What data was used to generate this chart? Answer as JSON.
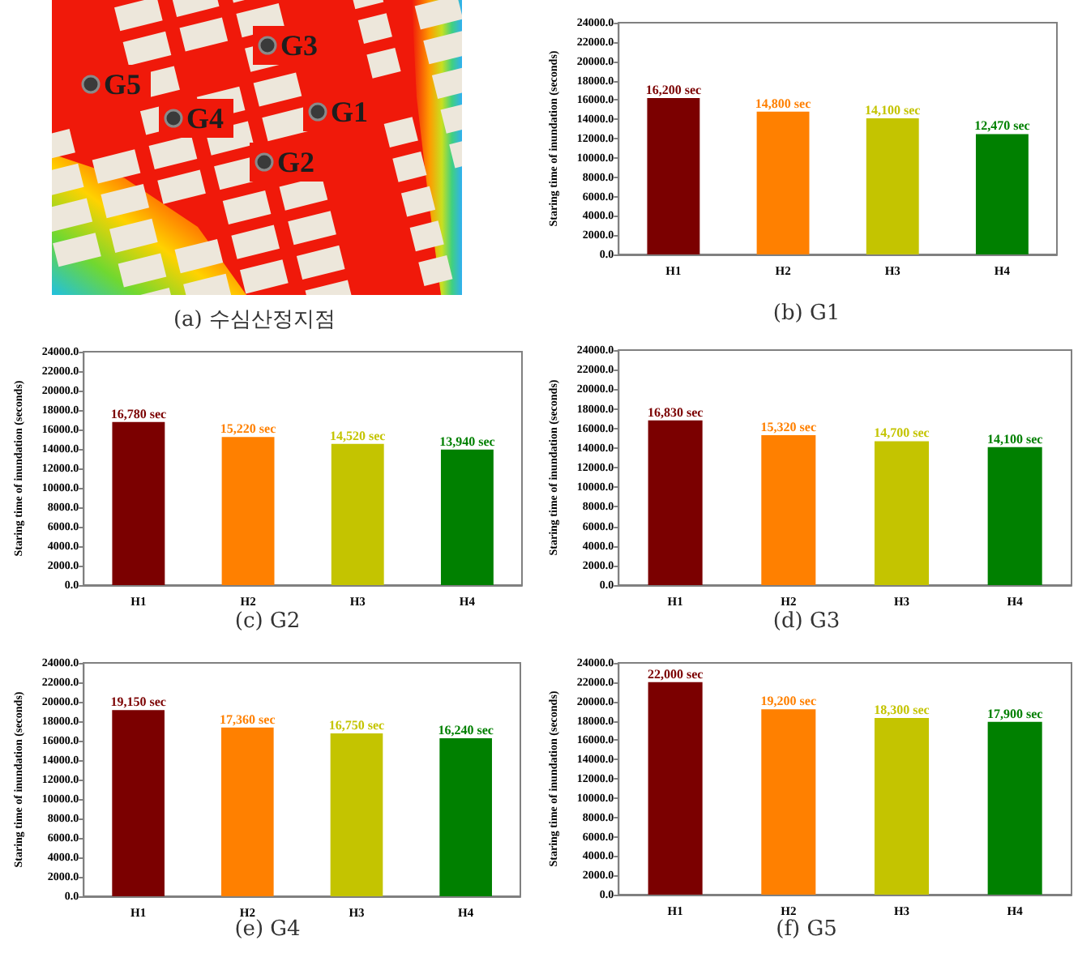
{
  "chart_data": [
    {
      "type": "other",
      "title": "(a) 수심산정지점",
      "annotations": [
        "G3",
        "G5",
        "G4",
        "G1",
        "G2"
      ]
    },
    {
      "type": "bar",
      "title": "(b) G1",
      "categories": [
        "H1",
        "H2",
        "H3",
        "H4"
      ],
      "values": [
        16200,
        14800,
        14100,
        12470
      ],
      "colors": [
        "#7b0000",
        "#ff8000",
        "#c4c400",
        "#008000"
      ],
      "value_labels": [
        "16,200 sec",
        "14,800 sec",
        "14,100 sec",
        "12,470 sec"
      ],
      "ylabel": "Staring time of inundation (seconds)",
      "ylim": [
        0,
        24000
      ],
      "yticks": [
        {
          "value": 0,
          "label": "0.0"
        },
        {
          "value": 2000,
          "label": "2000.0"
        },
        {
          "value": 4000,
          "label": "4000.0"
        },
        {
          "value": 6000,
          "label": "6000.0"
        },
        {
          "value": 8000,
          "label": "8000.0"
        },
        {
          "value": 10000,
          "label": "10000.0"
        },
        {
          "value": 12000,
          "label": "12000.0"
        },
        {
          "value": 14000,
          "label": "14000.0"
        },
        {
          "value": 16000,
          "label": "16000.0"
        },
        {
          "value": 18000,
          "label": "18000.0"
        },
        {
          "value": 20000,
          "label": "20000.0"
        },
        {
          "value": 22000,
          "label": "22000.0"
        },
        {
          "value": 24000,
          "label": "24000.0"
        }
      ]
    },
    {
      "type": "bar",
      "title": "(c) G2",
      "categories": [
        "H1",
        "H2",
        "H3",
        "H4"
      ],
      "values": [
        16780,
        15220,
        14520,
        13940
      ],
      "colors": [
        "#7b0000",
        "#ff8000",
        "#c4c400",
        "#008000"
      ],
      "value_labels": [
        "16,780 sec",
        "15,220 sec",
        "14,520 sec",
        "13,940 sec"
      ],
      "ylabel": "Staring time of inundation (seconds)",
      "ylim": [
        0,
        24000
      ],
      "yticks": [
        {
          "value": 0,
          "label": "0.0"
        },
        {
          "value": 2000,
          "label": "2000.0"
        },
        {
          "value": 4000,
          "label": "4000.0"
        },
        {
          "value": 6000,
          "label": "6000.0"
        },
        {
          "value": 8000,
          "label": "8000.0"
        },
        {
          "value": 10000,
          "label": "10000.0"
        },
        {
          "value": 12000,
          "label": "12000.0"
        },
        {
          "value": 14000,
          "label": "14000.0"
        },
        {
          "value": 16000,
          "label": "16000.0"
        },
        {
          "value": 18000,
          "label": "18000.0"
        },
        {
          "value": 20000,
          "label": "20000.0"
        },
        {
          "value": 22000,
          "label": "22000.0"
        },
        {
          "value": 24000,
          "label": "24000.0"
        }
      ]
    },
    {
      "type": "bar",
      "title": "(d) G3",
      "categories": [
        "H1",
        "H2",
        "H3",
        "H4"
      ],
      "values": [
        16830,
        15320,
        14700,
        14100
      ],
      "colors": [
        "#7b0000",
        "#ff8000",
        "#c4c400",
        "#008000"
      ],
      "value_labels": [
        "16,830 sec",
        "15,320 sec",
        "14,700 sec",
        "14,100 sec"
      ],
      "ylabel": "Staring time of inundation (seconds)",
      "ylim": [
        0,
        24000
      ],
      "yticks": [
        {
          "value": 0,
          "label": "0.0"
        },
        {
          "value": 2000,
          "label": "2000.0"
        },
        {
          "value": 4000,
          "label": "4000.0"
        },
        {
          "value": 6000,
          "label": "6000.0"
        },
        {
          "value": 8000,
          "label": "8000.0"
        },
        {
          "value": 10000,
          "label": "10000.0"
        },
        {
          "value": 12000,
          "label": "12000.0"
        },
        {
          "value": 14000,
          "label": "14000.0"
        },
        {
          "value": 16000,
          "label": "16000.0"
        },
        {
          "value": 18000,
          "label": "18000.0"
        },
        {
          "value": 20000,
          "label": "20000.0"
        },
        {
          "value": 22000,
          "label": "22000.0"
        },
        {
          "value": 24000,
          "label": "24000.0"
        }
      ]
    },
    {
      "type": "bar",
      "title": "(e) G4",
      "categories": [
        "H1",
        "H2",
        "H3",
        "H4"
      ],
      "values": [
        19150,
        17360,
        16750,
        16240
      ],
      "colors": [
        "#7b0000",
        "#ff8000",
        "#c4c400",
        "#008000"
      ],
      "value_labels": [
        "19,150 sec",
        "17,360 sec",
        "16,750 sec",
        "16,240 sec"
      ],
      "ylabel": "Staring time of inundation (seconds)",
      "ylim": [
        0,
        24000
      ],
      "yticks": [
        {
          "value": 0,
          "label": "0.0"
        },
        {
          "value": 2000,
          "label": "2000.0"
        },
        {
          "value": 4000,
          "label": "4000.0"
        },
        {
          "value": 6000,
          "label": "6000.0"
        },
        {
          "value": 8000,
          "label": "8000.0"
        },
        {
          "value": 10000,
          "label": "10000.0"
        },
        {
          "value": 12000,
          "label": "12000.0"
        },
        {
          "value": 14000,
          "label": "14000.0"
        },
        {
          "value": 16000,
          "label": "16000.0"
        },
        {
          "value": 18000,
          "label": "18000.0"
        },
        {
          "value": 20000,
          "label": "20000.0"
        },
        {
          "value": 22000,
          "label": "22000.0"
        },
        {
          "value": 24000,
          "label": "24000.0"
        }
      ]
    },
    {
      "type": "bar",
      "title": "(f) G5",
      "categories": [
        "H1",
        "H2",
        "H3",
        "H4"
      ],
      "values": [
        22000,
        19200,
        18300,
        17900
      ],
      "colors": [
        "#7b0000",
        "#ff8000",
        "#c4c400",
        "#008000"
      ],
      "value_labels": [
        "22,000 sec",
        "19,200 sec",
        "18,300 sec",
        "17,900 sec"
      ],
      "ylabel": "Staring time of inundation (seconds)",
      "ylim": [
        0,
        24000
      ],
      "yticks": [
        {
          "value": 0,
          "label": "0.0"
        },
        {
          "value": 2000,
          "label": "2000.0"
        },
        {
          "value": 4000,
          "label": "4000.0"
        },
        {
          "value": 6000,
          "label": "6000.0"
        },
        {
          "value": 8000,
          "label": "8000.0"
        },
        {
          "value": 10000,
          "label": "10000.0"
        },
        {
          "value": 12000,
          "label": "12000.0"
        },
        {
          "value": 14000,
          "label": "14000.0"
        },
        {
          "value": 16000,
          "label": "16000.0"
        },
        {
          "value": 18000,
          "label": "18000.0"
        },
        {
          "value": 20000,
          "label": "20000.0"
        },
        {
          "value": 22000,
          "label": "22000.0"
        },
        {
          "value": 24000,
          "label": "24000.0"
        }
      ]
    }
  ]
}
